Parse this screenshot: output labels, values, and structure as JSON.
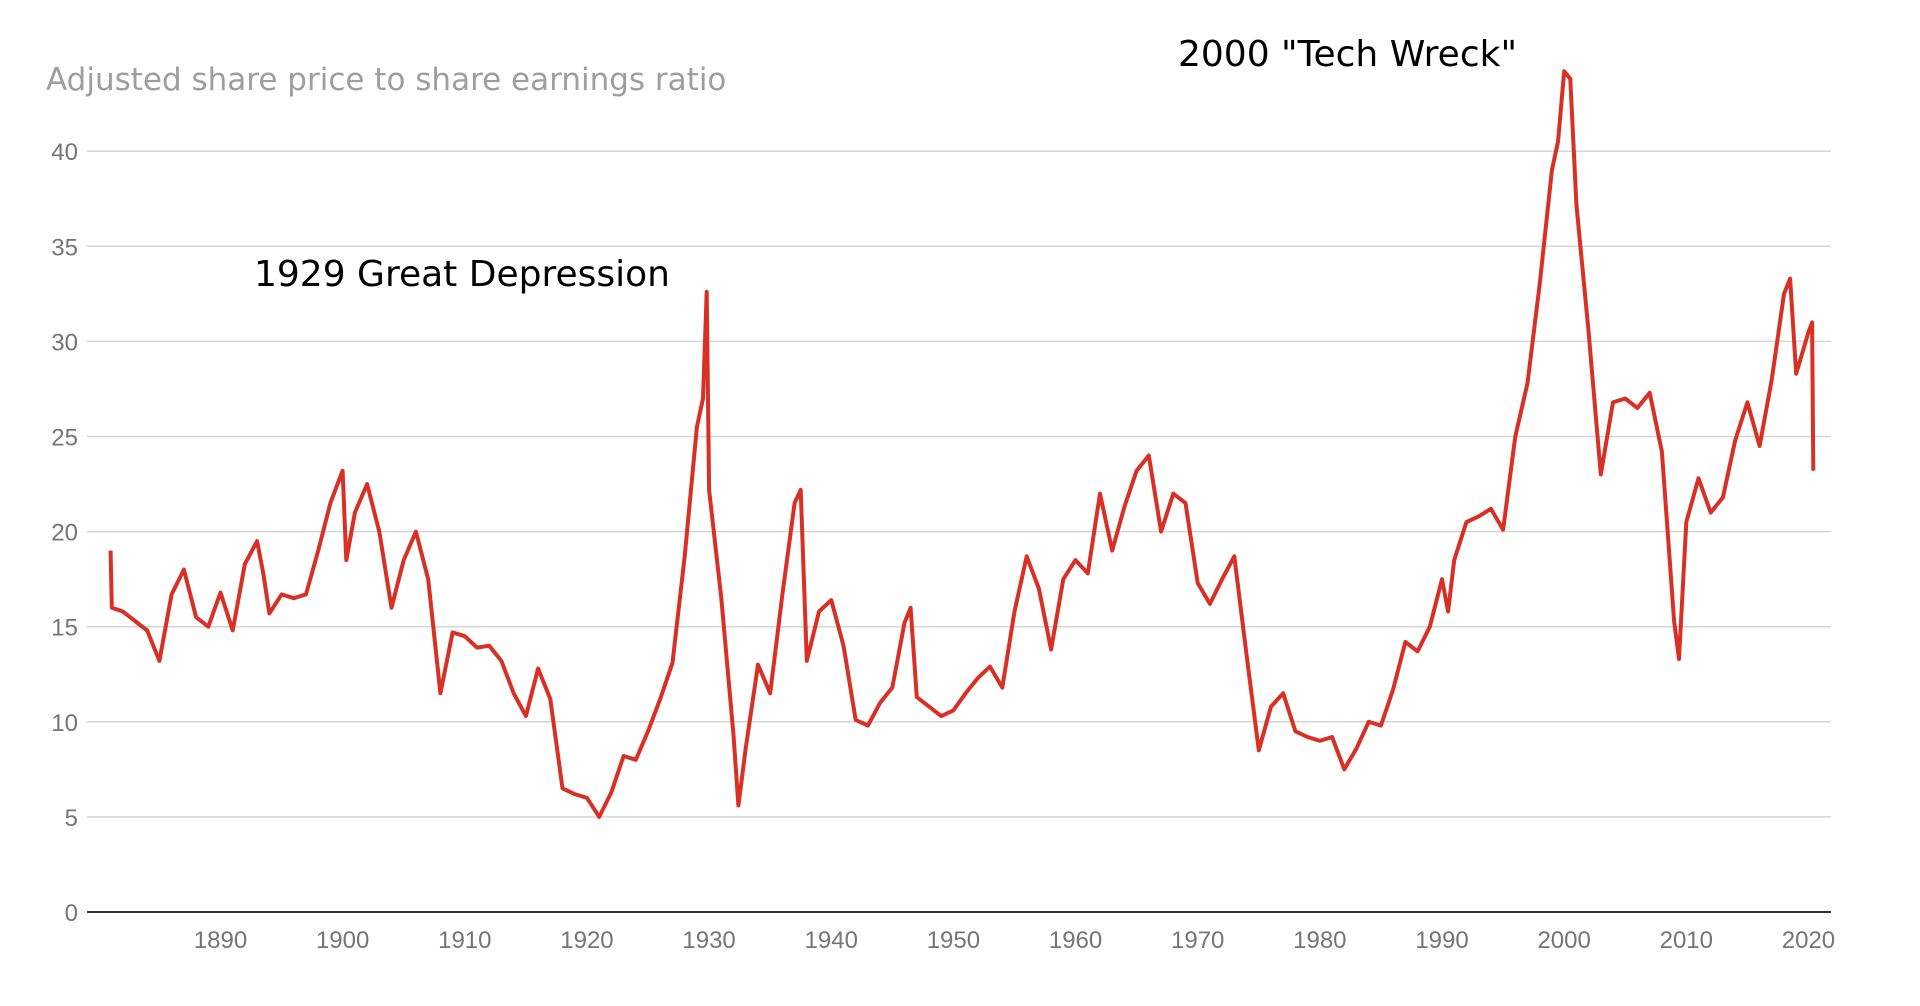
{
  "chart_data": {
    "type": "line",
    "title": "Adjusted share price to share earnings ratio",
    "xlabel": "",
    "ylabel": "",
    "xlim": [
      1879,
      2022
    ],
    "ylim": [
      0,
      45
    ],
    "x_ticks": [
      1890,
      1900,
      1910,
      1920,
      1930,
      1940,
      1950,
      1960,
      1970,
      1980,
      1990,
      2000,
      2010,
      2020
    ],
    "y_ticks": [
      0,
      5,
      10,
      15,
      20,
      25,
      30,
      35,
      40
    ],
    "grid": "horizontal",
    "line_color": "#d93025",
    "annotations": [
      {
        "text": "1929 Great Depression",
        "x": 1929,
        "y": 32.6
      },
      {
        "text": "2000 \"Tech Wreck\"",
        "x": 2000,
        "y": 44.2
      }
    ],
    "series": [
      {
        "x": [
          1881,
          1881.1,
          1882,
          1883,
          1884,
          1885,
          1886,
          1887,
          1888,
          1889,
          1890,
          1891,
          1892,
          1893,
          1893.5,
          1894,
          1895,
          1896,
          1897,
          1898,
          1899,
          1900,
          1900.3,
          1901,
          1902,
          1903,
          1904,
          1905,
          1906,
          1907,
          1908,
          1909,
          1910,
          1911,
          1912,
          1913,
          1914,
          1915,
          1916,
          1917,
          1918,
          1919,
          1920,
          1921,
          1922,
          1923,
          1924,
          1925,
          1926,
          1927,
          1928,
          1929,
          1929.5,
          1929.8,
          1930,
          1931,
          1932,
          1932.4,
          1933,
          1934,
          1935,
          1936,
          1937,
          1937.5,
          1938,
          1939,
          1940,
          1941,
          1942,
          1943,
          1944,
          1945,
          1946,
          1946.5,
          1947,
          1948,
          1949,
          1950,
          1951,
          1952,
          1953,
          1954,
          1955,
          1956,
          1957,
          1958,
          1959,
          1960,
          1961,
          1962,
          1963,
          1964,
          1965,
          1966,
          1967,
          1968,
          1969,
          1970,
          1971,
          1972,
          1973,
          1974,
          1975,
          1976,
          1977,
          1978,
          1979,
          1980,
          1981,
          1982,
          1983,
          1984,
          1985,
          1986,
          1987,
          1988,
          1989,
          1990,
          1990.5,
          1991,
          1992,
          1993,
          1994,
          1995,
          1996,
          1997,
          1998,
          1999,
          1999.5,
          2000,
          2000.5,
          2001,
          2002,
          2003,
          2004,
          2005,
          2006,
          2007,
          2008,
          2009,
          2009.4,
          2010,
          2011,
          2012,
          2013,
          2014,
          2015,
          2016,
          2017,
          2018,
          2018.5,
          2019,
          2020,
          2020.3,
          2020.4
        ],
        "y": [
          19,
          16,
          15.8,
          15.3,
          14.8,
          13.2,
          16.7,
          18,
          15.5,
          15,
          16.8,
          14.8,
          18.3,
          19.5,
          17.8,
          15.7,
          16.7,
          16.5,
          16.7,
          19,
          21.5,
          23.2,
          18.5,
          21,
          22.5,
          20,
          16,
          18.5,
          20,
          17.5,
          11.5,
          14.7,
          14.5,
          13.9,
          14,
          13.2,
          11.5,
          10.3,
          12.8,
          11.2,
          6.5,
          6.2,
          6,
          5,
          6.3,
          8.2,
          8,
          9.5,
          11.2,
          13.1,
          18.7,
          25.5,
          27,
          32.6,
          22.2,
          16.5,
          9.3,
          5.6,
          8.6,
          13,
          11.5,
          16.7,
          21.5,
          22.2,
          13.2,
          15.8,
          16.4,
          14,
          10.1,
          9.8,
          11,
          11.8,
          15.2,
          16,
          11.3,
          10.8,
          10.3,
          10.6,
          11.5,
          12.3,
          12.9,
          11.8,
          15.8,
          18.7,
          17,
          13.8,
          17.5,
          18.5,
          17.8,
          22,
          19,
          21.3,
          23.2,
          24,
          20,
          22,
          21.5,
          17.3,
          16.2,
          17.5,
          18.7,
          13.5,
          8.5,
          10.8,
          11.5,
          9.5,
          9.2,
          9,
          9.2,
          7.5,
          8.6,
          10,
          9.8,
          11.7,
          14.2,
          13.7,
          15,
          17.5,
          15.8,
          18.5,
          20.5,
          20.8,
          21.2,
          20.1,
          25,
          27.8,
          33,
          39,
          40.5,
          44.2,
          43.8,
          37.2,
          30.5,
          23,
          26.8,
          27,
          26.5,
          27.3,
          24.2,
          15.3,
          13.3,
          20.5,
          22.8,
          21,
          21.8,
          24.8,
          26.8,
          24.5,
          28,
          32.5,
          33.3,
          28.3,
          30.5,
          31,
          23.2
        ]
      }
    ]
  }
}
